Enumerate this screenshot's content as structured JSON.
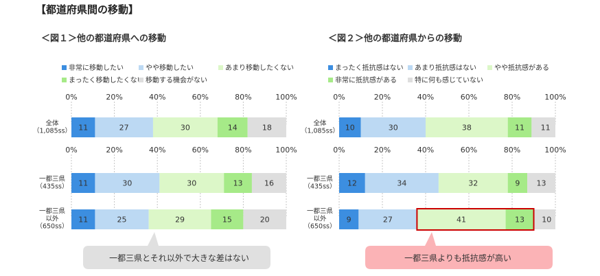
{
  "page_title": "【都道府県間の移動】",
  "colors": {
    "c1": "#3c8ee0",
    "c2": "#bcd9f3",
    "c3": "#dcf7c8",
    "c4": "#a6ea88",
    "c5": "#dedede",
    "callout_left": "#e0e0e0",
    "callout_right": "#fbb3b6",
    "highlight_border": "#cc0000"
  },
  "chart_data": [
    {
      "type": "bar",
      "orientation": "horizontal",
      "stacked": true,
      "title": "＜図１＞他の都道府県への移動",
      "xlim": [
        0,
        100
      ],
      "tick_labels": [
        "0%",
        "20%",
        "40%",
        "60%",
        "80%",
        "100%"
      ],
      "groups": [
        {
          "rows": [
            {
              "label": [
                "全体",
                "（1,085ss）"
              ],
              "values": [
                11,
                27,
                30,
                14,
                18
              ]
            }
          ]
        },
        {
          "rows": [
            {
              "label": [
                "一都三県",
                "（435ss）"
              ],
              "values": [
                11,
                30,
                30,
                13,
                16
              ]
            },
            {
              "label": [
                "一都三県",
                "以外",
                "（650ss）"
              ],
              "values": [
                11,
                25,
                29,
                15,
                20
              ]
            }
          ]
        }
      ],
      "legend": [
        "非常に移動したい",
        "やや移動したい",
        "あまり移動したくない",
        "まったく移動したくない",
        "移動する機会がない"
      ],
      "callout": "一都三県とそれ以外で大きな差はない"
    },
    {
      "type": "bar",
      "orientation": "horizontal",
      "stacked": true,
      "title": "＜図２＞他の都道府県からの移動",
      "xlim": [
        0,
        100
      ],
      "tick_labels": [
        "0%",
        "20%",
        "40%",
        "60%",
        "80%",
        "100%"
      ],
      "groups": [
        {
          "rows": [
            {
              "label": [
                "全体",
                "（1,085ss）"
              ],
              "values": [
                10,
                30,
                38,
                11,
                11
              ]
            }
          ]
        },
        {
          "rows": [
            {
              "label": [
                "一都三県",
                "（435ss）"
              ],
              "values": [
                12,
                34,
                32,
                9,
                13
              ]
            },
            {
              "label": [
                "一都三県",
                "以外",
                "（650ss）"
              ],
              "values": [
                9,
                27,
                41,
                13,
                10
              ]
            }
          ]
        }
      ],
      "legend": [
        "まったく抵抗感はない",
        "あまり抵抗感はない",
        "やや抵抗感がある",
        "非常に抵抗感がある",
        "特に何も感じていない"
      ],
      "highlight": {
        "row": 2,
        "segments": [
          2,
          3
        ]
      },
      "callout": "一都三県よりも抵抗感が高い"
    }
  ]
}
